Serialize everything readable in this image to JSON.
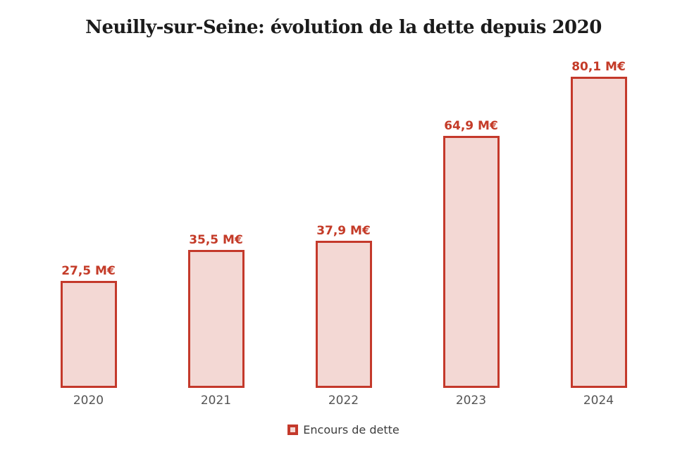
{
  "title": "Neuilly-sur-Seine: évolution de la dette depuis 2020",
  "legend": {
    "label": "Encours de dette",
    "marker": "red-bordered-square"
  },
  "colors": {
    "bar_fill": "#f3d8d4",
    "bar_border": "#c4392b",
    "value_label": "#c43b28",
    "axis_label": "#545454",
    "title": "#1b1b1b",
    "legend_text": "#3d3d3d",
    "background": "#ffffff"
  },
  "chart_data": {
    "type": "bar",
    "title": "Neuilly-sur-Seine: évolution de la dette depuis 2020",
    "categories": [
      "2020",
      "2021",
      "2022",
      "2023",
      "2024"
    ],
    "values": [
      27.5,
      35.5,
      37.9,
      64.9,
      80.1
    ],
    "value_labels": [
      "27,5 M€",
      "35,5 M€",
      "37,9 M€",
      "64,9 M€",
      "80,1 M€"
    ],
    "series": [
      {
        "name": "Encours de dette",
        "values": [
          27.5,
          35.5,
          37.9,
          64.9,
          80.1
        ]
      }
    ],
    "unit": "M€",
    "xlabel": "",
    "ylabel": "",
    "ylim": [
      0,
      85
    ],
    "grid": false,
    "axis_lines": false,
    "legend_position": "bottom-center"
  }
}
